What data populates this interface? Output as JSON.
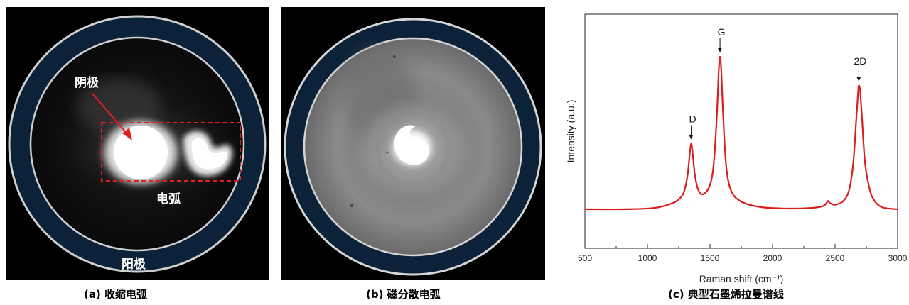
{
  "panels": {
    "a": {
      "caption": "(a)  收缩电弧",
      "label_cathode": "阴极",
      "label_arc": "电弧",
      "label_anode": "阳极"
    },
    "b": {
      "caption": "(b)  磁分散电弧"
    },
    "c": {
      "caption": "(c)  典型石墨烯拉曼谱线"
    }
  },
  "colors": {
    "ring": "#0c2238",
    "spectrum": "#dd1c1c",
    "dashed_box": "#e02020"
  },
  "chart_data": {
    "type": "line",
    "title": "",
    "xlabel": "Raman shift (cm⁻¹)",
    "ylabel": "Intensity (a.u.)",
    "xlim": [
      500,
      3000
    ],
    "ylim": [
      0,
      1.2
    ],
    "xticks": [
      500,
      1000,
      1500,
      2000,
      2500,
      3000
    ],
    "peaks": [
      {
        "label": "D",
        "x": 1350,
        "y": 0.43
      },
      {
        "label": "G",
        "x": 1580,
        "y": 1.0
      },
      {
        "label": "2D",
        "x": 2690,
        "y": 0.81
      }
    ],
    "series": [
      {
        "x": [
          500,
          800,
          1000,
          1100,
          1200,
          1250,
          1290,
          1320,
          1340,
          1350,
          1360,
          1380,
          1410,
          1450,
          1500,
          1530,
          1555,
          1570,
          1580,
          1590,
          1605,
          1630,
          1670,
          1750,
          1900,
          2100,
          2300,
          2400,
          2430,
          2445,
          2460,
          2500,
          2560,
          2610,
          2645,
          2670,
          2685,
          2690,
          2700,
          2715,
          2740,
          2780,
          2820,
          2860,
          2900,
          3000
        ],
        "values": [
          0.0,
          0.0,
          0.005,
          0.015,
          0.04,
          0.065,
          0.11,
          0.22,
          0.38,
          0.43,
          0.38,
          0.22,
          0.12,
          0.1,
          0.16,
          0.3,
          0.62,
          0.91,
          1.0,
          0.91,
          0.62,
          0.28,
          0.12,
          0.05,
          0.015,
          0.005,
          0.008,
          0.02,
          0.04,
          0.055,
          0.04,
          0.03,
          0.05,
          0.12,
          0.3,
          0.6,
          0.78,
          0.81,
          0.78,
          0.6,
          0.3,
          0.12,
          0.05,
          0.02,
          0.008,
          0.0
        ]
      }
    ]
  }
}
